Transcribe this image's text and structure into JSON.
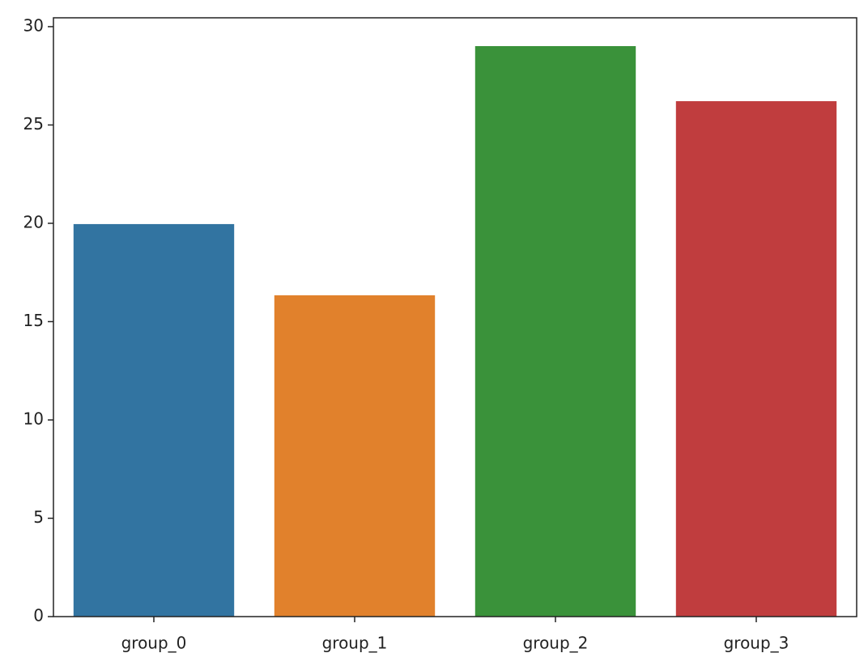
{
  "chart_data": {
    "type": "bar",
    "categories": [
      "group_0",
      "group_1",
      "group_2",
      "group_3"
    ],
    "values": [
      19.96,
      16.34,
      29.01,
      26.21
    ],
    "colors": [
      "#3274a1",
      "#e1812c",
      "#3a923a",
      "#c03d3e"
    ],
    "ylim": [
      0,
      30.45
    ],
    "yticks": [
      0,
      5,
      10,
      15,
      20,
      25,
      30
    ],
    "grid": false
  }
}
